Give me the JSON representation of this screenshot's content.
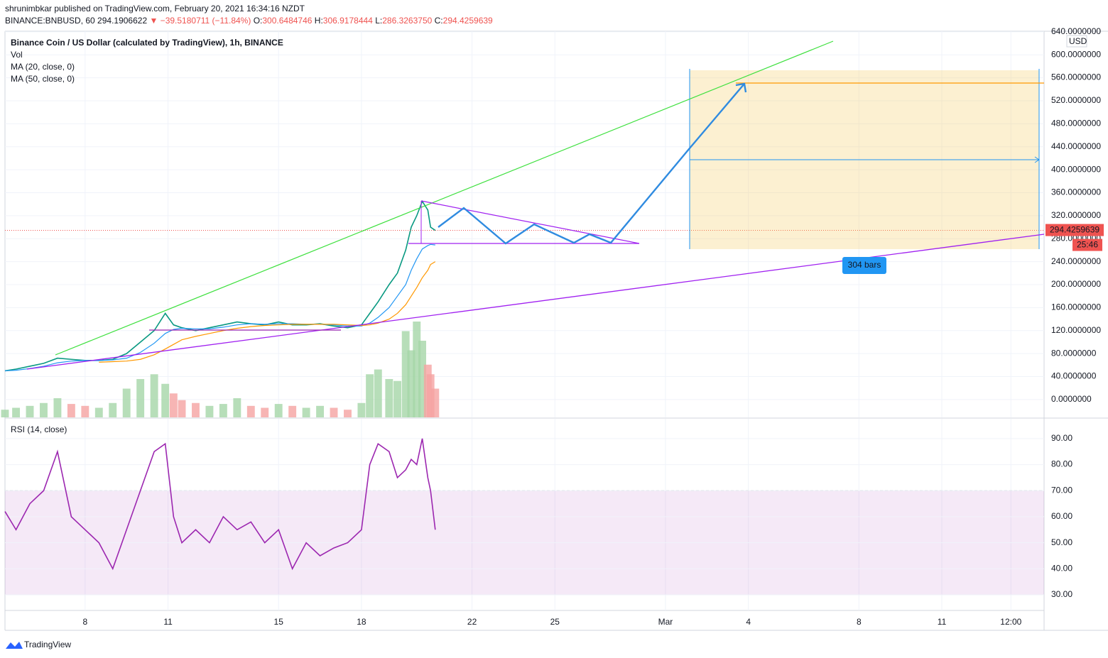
{
  "header": {
    "publisher": "shrunimbkar published on TradingView.com, February 20, 2021 16:34:16 NZDT",
    "symbol": "BINANCE:BNBUSD, 60",
    "last": "294.1906622",
    "change": "▼ −39.5180711 (−11.84%)",
    "ohlc": [
      {
        "label": "O:",
        "value": "300.6484746"
      },
      {
        "label": "H:",
        "value": "306.9178444"
      },
      {
        "label": "L:",
        "value": "286.3263750"
      },
      {
        "label": "C:",
        "value": "294.4259639"
      }
    ]
  },
  "chart_data": [
    {
      "type": "line",
      "x": [
        5.1,
        5.5,
        6,
        6.5,
        7,
        7.5,
        8,
        8.5,
        9,
        9.5,
        10,
        10.5,
        10.9,
        11.2,
        11.5,
        12,
        12.5,
        13,
        13.5,
        14,
        14.5,
        15,
        15.5,
        16,
        16.5,
        17,
        17.5,
        18,
        18.3,
        18.6,
        19,
        19.3,
        19.6,
        19.8,
        20,
        20.2,
        20.4,
        20.5,
        20.67
      ],
      "series": [
        {
          "name": "Binance Coin / US Dollar (calculated by TradingView), 1h, BINANCE",
          "color": "#089981",
          "values": [
            50,
            53,
            58,
            63,
            72,
            70,
            68,
            68,
            70,
            80,
            100,
            120,
            150,
            130,
            125,
            120,
            125,
            130,
            135,
            132,
            130,
            135,
            130,
            130,
            132,
            128,
            125,
            130,
            150,
            170,
            200,
            220,
            260,
            300,
            320,
            345,
            330,
            300,
            294.4259639
          ]
        },
        {
          "name": "MA (20, close, 0)",
          "color": "#2196f3",
          "values": [
            50,
            51,
            54,
            58,
            64,
            67,
            68,
            68,
            69,
            72,
            82,
            98,
            115,
            122,
            124,
            123,
            123,
            126,
            130,
            132,
            131,
            132,
            132,
            131,
            131,
            130,
            128,
            128,
            133,
            143,
            160,
            180,
            200,
            225,
            245,
            262,
            268,
            270,
            269
          ]
        },
        {
          "name": "MA (50, close, 0)",
          "color": "#ff9800",
          "values": [
            null,
            null,
            null,
            null,
            null,
            null,
            null,
            65,
            66,
            67,
            70,
            78,
            88,
            96,
            104,
            110,
            115,
            120,
            124,
            127,
            129,
            130,
            131,
            131,
            131,
            131,
            130,
            129,
            130,
            133,
            140,
            150,
            165,
            180,
            195,
            212,
            225,
            235,
            240
          ]
        }
      ],
      "volume": {
        "name": "Vol",
        "color": "#a5d6a7",
        "ylim": [
          0,
          100
        ],
        "values": [
          8,
          10,
          12,
          15,
          20,
          14,
          12,
          10,
          15,
          30,
          40,
          45,
          35,
          25,
          18,
          15,
          12,
          14,
          20,
          12,
          10,
          14,
          12,
          10,
          12,
          10,
          8,
          15,
          45,
          50,
          40,
          38,
          90,
          70,
          100,
          80,
          55,
          45,
          30
        ]
      },
      "xlim": [
        5.1,
        42.7
      ],
      "xticks": [
        8,
        11,
        15,
        18,
        22,
        25,
        {
          "value": 29,
          "label": "Mar"
        },
        {
          "value": 32,
          "label": "4"
        },
        {
          "value": 36,
          "label": "8"
        },
        {
          "value": 39,
          "label": "11"
        },
        {
          "value": 41.5,
          "label": "12:00"
        }
      ],
      "ylim": [
        -31,
        641
      ],
      "yticks": [
        {
          "value": 0,
          "label": "0.0000000"
        },
        {
          "value": 40,
          "label": "40.0000000"
        },
        {
          "value": 80,
          "label": "80.0000000"
        },
        {
          "value": 120,
          "label": "120.0000000"
        },
        {
          "value": 160,
          "label": "160.0000000"
        },
        {
          "value": 200,
          "label": "200.0000000"
        },
        {
          "value": 240,
          "label": "240.0000000"
        },
        {
          "value": 280,
          "label": "280.0000000"
        },
        {
          "value": 320,
          "label": "320.0000000"
        },
        {
          "value": 360,
          "label": "360.0000000"
        },
        {
          "value": 400,
          "label": "400.0000000"
        },
        {
          "value": 440,
          "label": "440.0000000"
        },
        {
          "value": 480,
          "label": "480.0000000"
        },
        {
          "value": 520,
          "label": "520.0000000"
        },
        {
          "value": 560,
          "label": "560.0000000"
        },
        {
          "value": 600,
          "label": "600.0000000"
        },
        {
          "value": 640,
          "label": "640.0000000"
        }
      ],
      "currency": "USD",
      "countdown": "25:46",
      "range_label": "304 bars",
      "grid": true
    },
    {
      "type": "line",
      "x": [
        5.1,
        5.5,
        6,
        6.5,
        7,
        7.5,
        8,
        8.5,
        9,
        9.5,
        10,
        10.5,
        10.9,
        11.2,
        11.5,
        12,
        12.5,
        13,
        13.5,
        14,
        14.5,
        15,
        15.5,
        16,
        16.5,
        17,
        17.5,
        18,
        18.3,
        18.6,
        19,
        19.3,
        19.6,
        19.8,
        20,
        20.2,
        20.4,
        20.5,
        20.67
      ],
      "series": [
        {
          "name": "RSI (14, close)",
          "color": "#9c27b0",
          "values": [
            62,
            55,
            65,
            70,
            85,
            60,
            55,
            50,
            40,
            55,
            70,
            85,
            88,
            60,
            50,
            55,
            50,
            60,
            55,
            58,
            50,
            55,
            40,
            50,
            45,
            48,
            50,
            55,
            80,
            88,
            85,
            75,
            78,
            82,
            80,
            90,
            75,
            70,
            55
          ]
        }
      ],
      "xlim": [
        5.1,
        42.7
      ],
      "ylim": [
        24,
        97.6
      ],
      "yticks": [
        {
          "value": 30,
          "label": "30.00"
        },
        {
          "value": 40,
          "label": "40.00"
        },
        {
          "value": 50,
          "label": "50.00"
        },
        {
          "value": 60,
          "label": "60.00"
        },
        {
          "value": 70,
          "label": "70.00"
        },
        {
          "value": 80,
          "label": "80.00"
        },
        {
          "value": 90,
          "label": "90.00"
        }
      ],
      "band": [
        30,
        70
      ],
      "grid": true
    }
  ],
  "footer": {
    "brand": "TradingView"
  }
}
